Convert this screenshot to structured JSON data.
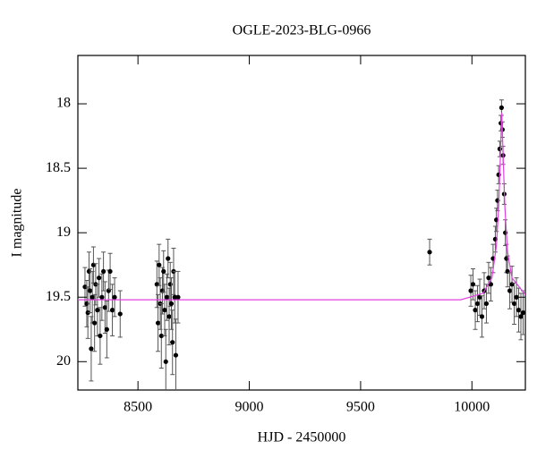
{
  "chart_data": {
    "type": "scatter",
    "title": "OGLE-2023-BLG-0966",
    "x_label": "HJD - 2450000",
    "y_label": "I magnitude",
    "xlim": [
      8230,
      10240
    ],
    "ylim": [
      20.22,
      17.625
    ],
    "xticks": [
      8500,
      9000,
      9500,
      10000
    ],
    "yticks": [
      18,
      18.5,
      19,
      19.5,
      20
    ],
    "series": [
      {
        "color": "#000000",
        "style": "points",
        "x": [
          8262,
          8270,
          8275,
          8280,
          8285,
          8290,
          8295,
          8300,
          8305,
          8310,
          8318,
          8325,
          8330,
          8338,
          8345,
          8352,
          8360,
          8368,
          8375,
          8385,
          8395,
          8420,
          8585,
          8590,
          8595,
          8600,
          8605,
          8610,
          8615,
          8620,
          8625,
          8630,
          8635,
          8640,
          8645,
          8650,
          8655,
          8660,
          8665,
          8670,
          8680,
          9810,
          9995,
          10005,
          10015,
          10025,
          10035,
          10045,
          10055,
          10065,
          10075,
          10085,
          10095,
          10105,
          10110,
          10115,
          10120,
          10125,
          10130,
          10133,
          10137,
          10140,
          10145,
          10150,
          10155,
          10160,
          10170,
          10180,
          10190,
          10200,
          10210,
          10220,
          10230
        ],
        "values": [
          19.42,
          19.55,
          19.62,
          19.3,
          19.45,
          19.9,
          19.5,
          19.25,
          19.7,
          19.4,
          19.6,
          19.35,
          19.8,
          19.5,
          19.3,
          19.58,
          19.75,
          19.45,
          19.3,
          19.6,
          19.5,
          19.63,
          19.4,
          19.7,
          19.25,
          19.55,
          19.8,
          19.45,
          19.3,
          19.6,
          20.0,
          19.5,
          19.2,
          19.65,
          19.4,
          19.55,
          19.85,
          19.3,
          19.5,
          19.95,
          19.5,
          19.15,
          19.45,
          19.4,
          19.6,
          19.55,
          19.5,
          19.65,
          19.45,
          19.55,
          19.35,
          19.4,
          19.2,
          19.05,
          18.9,
          18.75,
          18.55,
          18.35,
          18.15,
          18.03,
          18.2,
          18.4,
          18.7,
          19.0,
          19.2,
          19.3,
          19.45,
          19.4,
          19.55,
          19.5,
          19.6,
          19.65,
          19.62
        ],
        "errors": [
          0.15,
          0.18,
          0.2,
          0.15,
          0.17,
          0.25,
          0.2,
          0.14,
          0.22,
          0.16,
          0.2,
          0.15,
          0.22,
          0.18,
          0.15,
          0.2,
          0.22,
          0.16,
          0.14,
          0.2,
          0.15,
          0.18,
          0.18,
          0.22,
          0.16,
          0.2,
          0.25,
          0.18,
          0.16,
          0.2,
          0.25,
          0.18,
          0.15,
          0.22,
          0.17,
          0.2,
          0.25,
          0.18,
          0.2,
          0.28,
          0.2,
          0.1,
          0.12,
          0.12,
          0.15,
          0.14,
          0.14,
          0.16,
          0.14,
          0.15,
          0.12,
          0.13,
          0.11,
          0.1,
          0.09,
          0.08,
          0.07,
          0.06,
          0.06,
          0.06,
          0.06,
          0.07,
          0.08,
          0.1,
          0.11,
          0.12,
          0.14,
          0.14,
          0.16,
          0.15,
          0.17,
          0.18,
          0.17
        ]
      },
      {
        "color": "#e040e0",
        "style": "line",
        "x": [
          8230,
          9950,
          10050,
          10090,
          10110,
          10120,
          10128,
          10134,
          10140,
          10148,
          10160,
          10180,
          10240
        ],
        "values": [
          19.52,
          19.52,
          19.47,
          19.35,
          19.1,
          18.8,
          18.4,
          18.07,
          18.4,
          18.8,
          19.15,
          19.35,
          19.48
        ]
      }
    ]
  }
}
